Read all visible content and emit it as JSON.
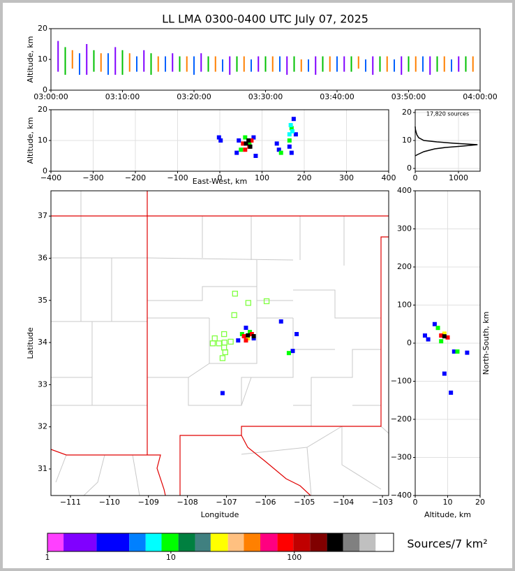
{
  "chart_data": [
    {
      "type": "streak",
      "title": "LL LMA 0300-0400 UTC July 07, 2025",
      "ylabel": "Altitude, km",
      "xlim": [
        0,
        60
      ],
      "ylim": [
        0,
        20
      ],
      "grid": false,
      "xticks": [
        {
          "value": 0,
          "label": "03:00:00"
        },
        {
          "value": 10,
          "label": "03:10:00"
        },
        {
          "value": 20,
          "label": "03:20:00"
        },
        {
          "value": 30,
          "label": "03:30:00"
        },
        {
          "value": 40,
          "label": "03:40:00"
        },
        {
          "value": 50,
          "label": "03:50:00"
        },
        {
          "value": 60,
          "label": "04:00:00"
        }
      ],
      "yticks": [
        0,
        10,
        20
      ],
      "series": [
        {
          "color": "#8000ff",
          "x": [
            1,
            5,
            9,
            13,
            17,
            21,
            25,
            29,
            33,
            37,
            41,
            45,
            49,
            53,
            57
          ],
          "values": [
            16,
            15,
            14,
            13,
            12,
            12,
            11,
            11,
            11,
            11,
            11,
            11,
            11,
            11,
            11
          ],
          "low": [
            6,
            5,
            5,
            6,
            6,
            6,
            5,
            6,
            5,
            5,
            6,
            5,
            5,
            5,
            6
          ]
        },
        {
          "color": "#00c000",
          "x": [
            2,
            6,
            10,
            14,
            18,
            22,
            26,
            30,
            34,
            38,
            42,
            46,
            50,
            54,
            58
          ],
          "values": [
            14,
            13,
            13,
            12,
            11,
            11,
            11,
            11,
            11,
            11,
            11,
            11,
            11,
            11,
            11
          ],
          "low": [
            5,
            6,
            5,
            5,
            6,
            6,
            6,
            6,
            6,
            6,
            6,
            6,
            6,
            6,
            6
          ]
        },
        {
          "color": "#ff8000",
          "x": [
            3,
            7,
            11,
            15,
            19,
            23,
            27,
            31,
            35,
            39,
            43,
            47,
            51,
            55,
            59
          ],
          "values": [
            13,
            12,
            12,
            11,
            11,
            11,
            11,
            11,
            10,
            11,
            11,
            11,
            11,
            11,
            11
          ],
          "low": [
            7,
            6,
            6,
            6,
            6,
            6,
            6,
            6,
            6,
            6,
            7,
            6,
            6,
            6,
            6
          ]
        },
        {
          "color": "#0060ff",
          "x": [
            4,
            8,
            12,
            16,
            20,
            24,
            28,
            32,
            36,
            40,
            44,
            48,
            52,
            56
          ],
          "values": [
            12,
            12,
            11,
            11,
            11,
            10,
            10,
            11,
            10,
            11,
            10,
            10,
            11,
            10
          ],
          "low": [
            5,
            5,
            6,
            6,
            5,
            6,
            6,
            6,
            6,
            6,
            6,
            6,
            6,
            6
          ]
        }
      ]
    },
    {
      "type": "scatter",
      "ylabel": "Altitude, km",
      "xlabel": "East-West, km",
      "xlim": [
        -400,
        400
      ],
      "ylim": [
        0,
        20
      ],
      "grid": true,
      "xticks": [
        {
          "value": -400,
          "label": "−400"
        },
        {
          "value": -300,
          "label": "−300"
        },
        {
          "value": -200,
          "label": "−200"
        },
        {
          "value": -100,
          "label": "−100"
        },
        0,
        100,
        200,
        300,
        400
      ],
      "yticks": [
        0,
        10,
        20
      ],
      "series": [
        {
          "color": "#0000ff",
          "x": [
            -2,
            2,
            40,
            45,
            85,
            80,
            140,
            135,
            165,
            175,
            170,
            180
          ],
          "values": [
            11,
            10,
            6,
            10,
            5,
            11,
            7,
            9,
            8,
            17,
            6,
            12
          ]
        },
        {
          "color": "#00ff00",
          "x": [
            50,
            70,
            60,
            165,
            170,
            145
          ],
          "values": [
            7,
            9,
            11,
            10,
            14,
            6
          ]
        },
        {
          "color": "#00ffff",
          "x": [
            165,
            168,
            172
          ],
          "values": [
            12,
            15,
            13
          ]
        },
        {
          "color": "#ff0000",
          "x": [
            55,
            70,
            60,
            75
          ],
          "values": [
            9,
            8,
            7,
            10
          ]
        },
        {
          "color": "#000000",
          "x": [
            62,
            68,
            72
          ],
          "values": [
            9,
            10,
            8
          ]
        }
      ]
    },
    {
      "type": "line",
      "annotation": "17,820 sources",
      "xlim": [
        0,
        1500
      ],
      "ylim": [
        -1,
        21
      ],
      "grid": true,
      "xticks": [
        0,
        1000
      ],
      "yticks": [
        0,
        10,
        20
      ],
      "color": "#000000",
      "x": [
        0,
        60,
        200,
        450,
        700,
        1100,
        1440,
        900,
        500,
        200,
        80,
        40,
        20,
        5,
        0
      ],
      "values": [
        4.5,
        5,
        6,
        7,
        7.5,
        8,
        8.5,
        9,
        9.5,
        10,
        11,
        12,
        13,
        14,
        15
      ]
    },
    {
      "type": "scatter",
      "ylabel": "Latitude",
      "xlabel": "Longitude",
      "xlim": [
        -111.5,
        -102.84
      ],
      "ylim": [
        30.37,
        37.6
      ],
      "grid": false,
      "xticks": [
        {
          "value": -111,
          "label": "−111"
        },
        {
          "value": -110,
          "label": "−110"
        },
        {
          "value": -109,
          "label": "−109"
        },
        {
          "value": -108,
          "label": "−108"
        },
        {
          "value": -107,
          "label": "−107"
        },
        {
          "value": -106,
          "label": "−106"
        },
        {
          "value": -105,
          "label": "−105"
        },
        {
          "value": -104,
          "label": "−104"
        },
        {
          "value": -103,
          "label": "−103"
        }
      ],
      "yticks": [
        31,
        32,
        33,
        34,
        35,
        36,
        37
      ],
      "stations": {
        "color": "#80ff40",
        "x": [
          -106.78,
          -106.44,
          -105.97,
          -106.8,
          -107.06,
          -107.3,
          -107.35,
          -107.19,
          -107.05,
          -106.89,
          -107.06,
          -107.03,
          -107.1
        ],
        "values": [
          35.16,
          34.94,
          34.98,
          34.65,
          34.2,
          34.1,
          33.98,
          33.98,
          34.0,
          34.02,
          33.88,
          33.77,
          33.63
        ]
      },
      "series": [
        {
          "color": "#0000ff",
          "x": [
            -106.5,
            -106.7,
            -106.3,
            -105.6,
            -105.3,
            -107.1,
            -105.2
          ],
          "values": [
            34.35,
            34.05,
            34.1,
            34.5,
            33.8,
            32.8,
            34.2
          ]
        },
        {
          "color": "#00ff00",
          "x": [
            -106.6,
            -106.4,
            -105.4
          ],
          "values": [
            34.2,
            34.25,
            33.75
          ]
        },
        {
          "color": "#ffff00",
          "x": [
            -106.45
          ],
          "values": [
            34.1
          ]
        },
        {
          "color": "#ff0000",
          "x": [
            -106.55,
            -106.35,
            -106.5
          ],
          "values": [
            34.15,
            34.2,
            34.05
          ]
        },
        {
          "color": "#000000",
          "x": [
            -106.45,
            -106.3
          ],
          "values": [
            34.17,
            34.15
          ]
        }
      ]
    },
    {
      "type": "scatter",
      "ylabel": "North-South, km",
      "xlabel": "Altitude, km",
      "xlim": [
        0,
        20
      ],
      "ylim": [
        -400,
        400
      ],
      "grid": true,
      "xticks": [
        0,
        10,
        20
      ],
      "yticks": [
        {
          "value": -400,
          "label": "−400"
        },
        {
          "value": -300,
          "label": "−300"
        },
        {
          "value": -200,
          "label": "−200"
        },
        {
          "value": -100,
          "label": "−100"
        },
        0,
        100,
        200,
        300,
        400
      ],
      "series": [
        {
          "color": "#0000ff",
          "x": [
            6,
            12,
            16,
            9,
            11,
            4,
            3
          ],
          "values": [
            50,
            -22,
            -25,
            -80,
            -130,
            10,
            20
          ]
        },
        {
          "color": "#00ff00",
          "x": [
            7,
            13,
            8
          ],
          "values": [
            40,
            -22,
            5
          ]
        },
        {
          "color": "#ffff00",
          "x": [
            9
          ],
          "values": [
            25
          ]
        },
        {
          "color": "#ff0000",
          "x": [
            8,
            10
          ],
          "values": [
            20,
            15
          ]
        },
        {
          "color": "#000000",
          "x": [
            9
          ],
          "values": [
            18
          ]
        }
      ]
    },
    {
      "type": "colorbar",
      "label": "Sources/7 km²",
      "log": true,
      "xlim": [
        1,
        637
      ],
      "xticks": [
        1,
        10,
        100
      ],
      "bounds": [
        1,
        1.35,
        2.5,
        4.6,
        6.25,
        8.4,
        11.5,
        15.7,
        21,
        29,
        39,
        53,
        73,
        98,
        134,
        184,
        248,
        338,
        456,
        637
      ],
      "colors": [
        "#ff40ff",
        "#8000ff",
        "#0000ff",
        "#0080ff",
        "#00ffff",
        "#00ff00",
        "#008040",
        "#408080",
        "#ffff00",
        "#ffc080",
        "#ff8000",
        "#ff0080",
        "#ff0000",
        "#c00000",
        "#800000",
        "#000000",
        "#808080",
        "#c0c0c0",
        "#ffffff"
      ]
    }
  ]
}
